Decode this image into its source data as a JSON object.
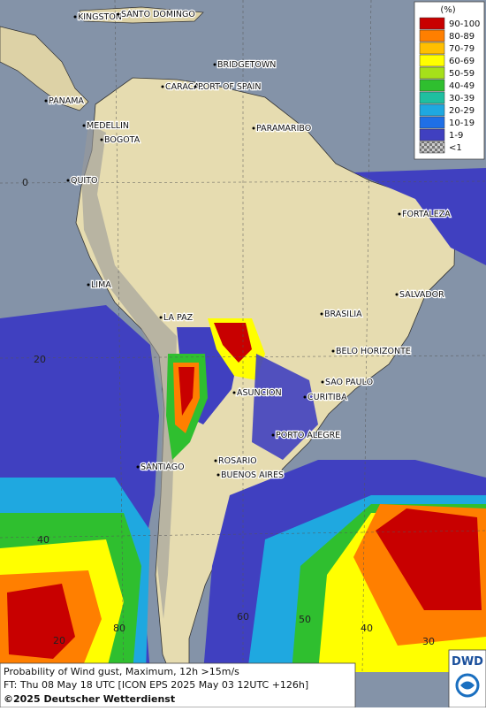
{
  "map": {
    "cities": [
      "KINGSTON",
      "SANTO DOMINGO",
      "BRIDGETOWN",
      "CARACAS",
      "PORT OF SPAIN",
      "PANAMA",
      "MEDELLIN",
      "BOGOTA",
      "PARAMARIBO",
      "QUITO",
      "FORTALEZA",
      "LIMA",
      "SALVADOR",
      "LA PAZ",
      "BRASILIA",
      "BELO HORIZONTE",
      "ASUNCION",
      "SAO PAULO",
      "CURITIBA",
      "PORTO ALEGRE",
      "SANTIAGO",
      "ROSARIO",
      "BUENOS AIRES"
    ],
    "grid_labels": [
      "0",
      "20",
      "40",
      "20",
      "80",
      "60",
      "50",
      "40",
      "30"
    ],
    "legend": {
      "title": "(%)",
      "items": [
        {
          "label": "90-100",
          "color": "#c80000"
        },
        {
          "label": "80-89",
          "color": "#ff7f00"
        },
        {
          "label": "70-79",
          "color": "#ffbf00"
        },
        {
          "label": "60-69",
          "color": "#ffff00"
        },
        {
          "label": "50-59",
          "color": "#a6e01a"
        },
        {
          "label": "40-49",
          "color": "#2fbf2f"
        },
        {
          "label": "30-39",
          "color": "#1fbfa0"
        },
        {
          "label": "20-29",
          "color": "#1fa8e0"
        },
        {
          "label": "10-19",
          "color": "#1f6fe6"
        },
        {
          "label": "1-9",
          "color": "#4040c0"
        },
        {
          "label": "<1",
          "color": "#9a9a9a"
        }
      ]
    },
    "footer": {
      "title": "Probability of Wind gust, Maximum, 12h >15m/s",
      "forecast": "FT: Thu 08 May 18 UTC [ICON EPS 2025 May 03 12UTC +126h]",
      "copyright": "©2025 Deutscher Wetterdienst"
    },
    "logo": "DWD"
  }
}
